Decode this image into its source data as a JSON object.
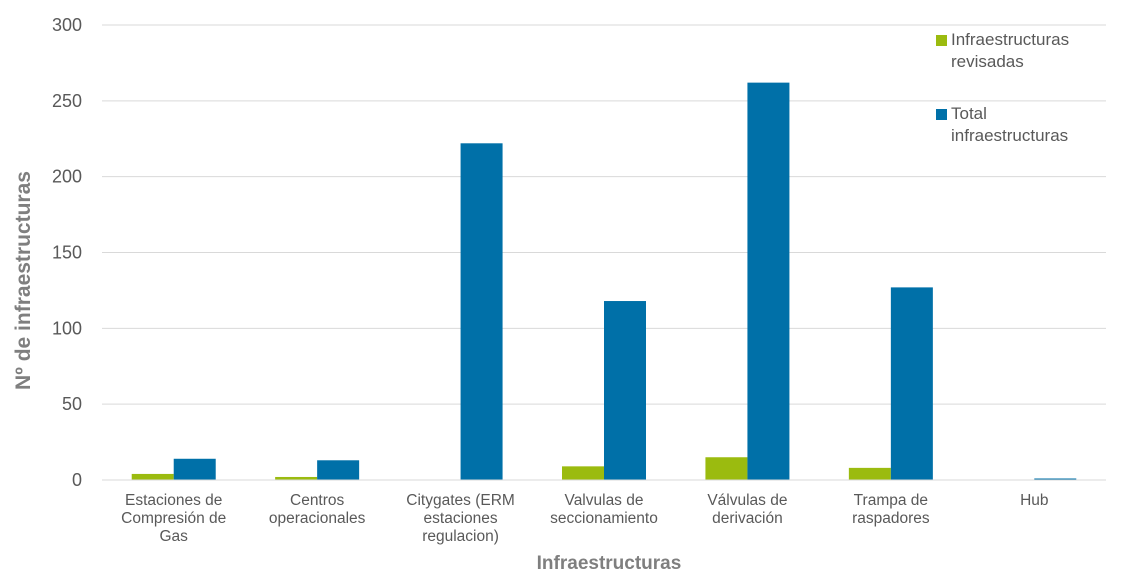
{
  "chart_data": {
    "type": "bar",
    "categories": [
      [
        "Estaciones de",
        "Compresión de",
        "Gas"
      ],
      [
        "Centros",
        "operacionales"
      ],
      [
        "Citygates (ERM",
        "estaciones",
        "regulacion)"
      ],
      [
        "Valvulas de",
        "seccionamiento"
      ],
      [
        "Válvulas de",
        "derivación"
      ],
      [
        "Trampa de",
        "raspadores"
      ],
      [
        "Hub"
      ]
    ],
    "series": [
      {
        "name": [
          "Infraestructuras",
          "revisadas"
        ],
        "color": "#9bbb0f",
        "values": [
          4,
          2,
          0,
          9,
          15,
          8,
          0
        ]
      },
      {
        "name": [
          "Total",
          "infraestructuras"
        ],
        "color": "#0070a8",
        "values": [
          14,
          13,
          222,
          118,
          262,
          127,
          1
        ]
      }
    ],
    "xlabel": "Infraestructuras",
    "ylabel": "Nº de infraestructuras",
    "ylim": [
      0,
      300
    ],
    "yticks": [
      0,
      50,
      100,
      150,
      200,
      250,
      300
    ],
    "grid": true,
    "legend_position": "top-right"
  }
}
